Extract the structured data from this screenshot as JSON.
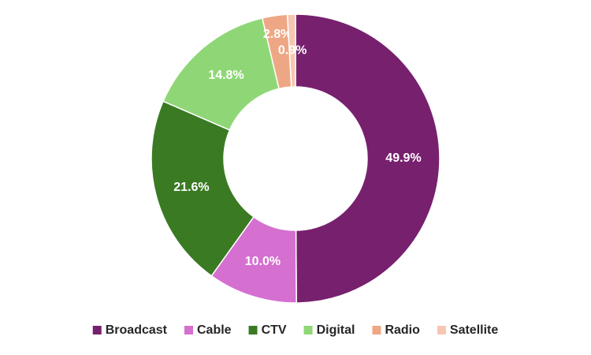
{
  "chart_data": {
    "type": "donut",
    "categories": [
      "Broadcast",
      "Cable",
      "CTV",
      "Digital",
      "Radio",
      "Satellite"
    ],
    "values": [
      49.9,
      10.0,
      21.6,
      14.8,
      2.8,
      0.9
    ],
    "value_labels": [
      "49.9%",
      "10.0%",
      "21.6%",
      "14.8%",
      "2.8%",
      "0.9%"
    ],
    "colors": [
      "#77206e",
      "#d56fd0",
      "#3a7a23",
      "#8fd776",
      "#eea784",
      "#f7c6b0"
    ],
    "legend": "bottom"
  }
}
